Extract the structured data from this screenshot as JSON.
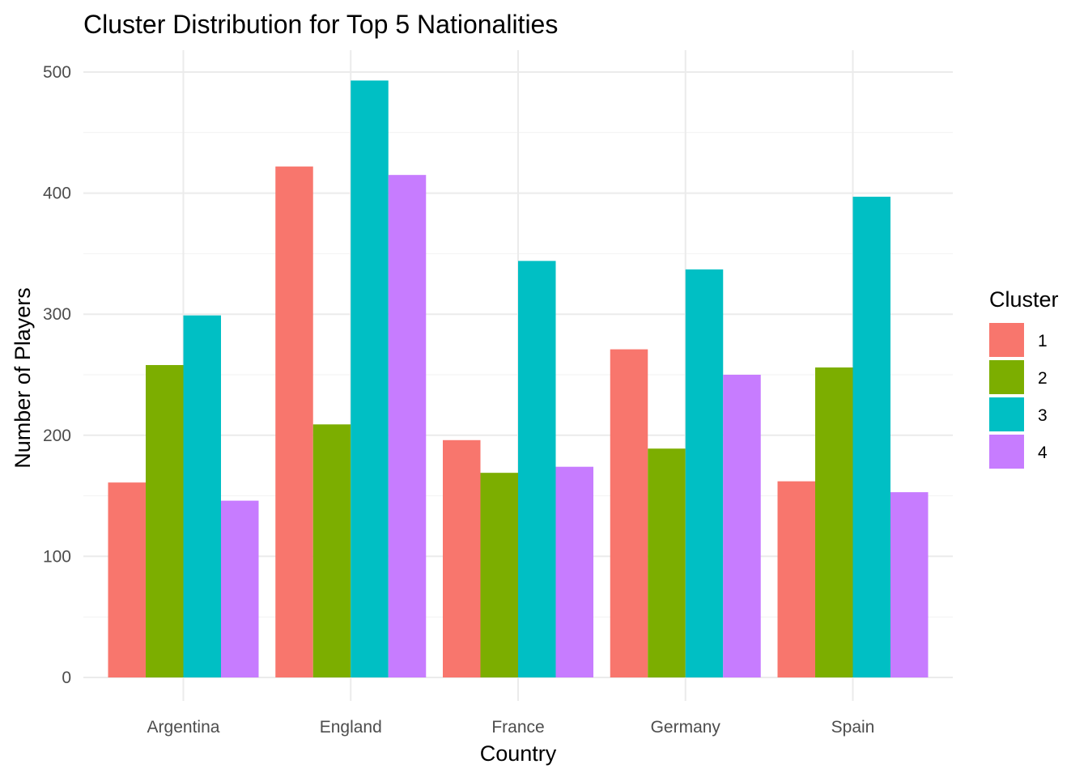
{
  "chart_data": {
    "type": "bar",
    "title": "Cluster Distribution for Top 5 Nationalities",
    "xlabel": "Country",
    "ylabel": "Number of Players",
    "categories": [
      "Argentina",
      "England",
      "France",
      "Germany",
      "Spain"
    ],
    "ylim": [
      0,
      500
    ],
    "yticks": [
      0,
      100,
      200,
      300,
      400,
      500
    ],
    "grid": true,
    "legend": {
      "title": "Cluster",
      "placement": "right"
    },
    "series": [
      {
        "name": "1",
        "color": "#F8766D",
        "values": [
          161,
          422,
          196,
          271,
          162
        ]
      },
      {
        "name": "2",
        "color": "#7CAE00",
        "values": [
          258,
          209,
          169,
          189,
          256
        ]
      },
      {
        "name": "3",
        "color": "#00BFC4",
        "values": [
          299,
          493,
          344,
          337,
          397
        ]
      },
      {
        "name": "4",
        "color": "#C77CFF",
        "values": [
          146,
          415,
          174,
          250,
          153
        ]
      }
    ]
  }
}
